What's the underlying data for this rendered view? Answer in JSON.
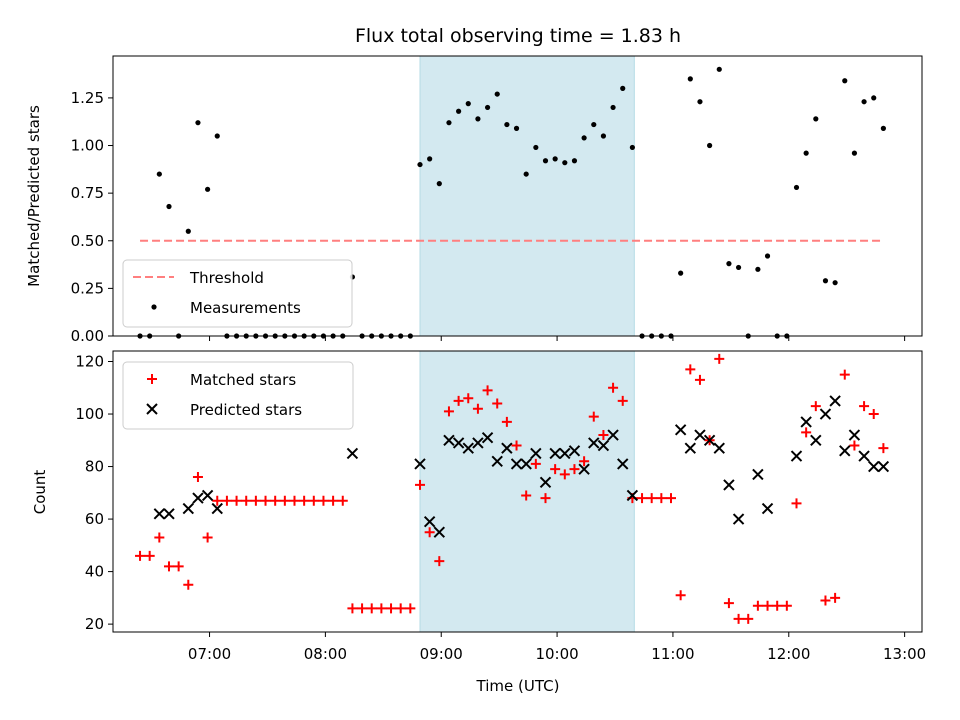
{
  "chart_data": [
    {
      "type": "scatter",
      "title": "Flux total observing time = 1.83 h",
      "xlabel": "",
      "ylabel": "Matched/Predicted stars",
      "xlim": [
        "06:10",
        "13:09"
      ],
      "ylim": [
        0,
        1.47
      ],
      "yticks": [
        "0.00",
        "0.25",
        "0.50",
        "0.75",
        "1.00",
        "1.25"
      ],
      "highlight_span": [
        "08:49",
        "10:40"
      ],
      "highlight_color": "#d3e9f0",
      "threshold": {
        "name": "Threshold",
        "value": 0.5,
        "x_range": [
          "06:24",
          "12:49"
        ],
        "color": "#ff7f7f",
        "style": "dashed"
      },
      "legend": {
        "placement": "lower-left",
        "entries": [
          "Threshold",
          "Measurements"
        ]
      },
      "series": [
        {
          "name": "Measurements",
          "color": "#000000",
          "marker": "dot",
          "points": [
            [
              "06:24",
              0
            ],
            [
              "06:29",
              0
            ],
            [
              "06:34",
              0.85
            ],
            [
              "06:39",
              0.68
            ],
            [
              "06:44",
              0
            ],
            [
              "06:49",
              0.55
            ],
            [
              "06:54",
              1.12
            ],
            [
              "06:59",
              0.77
            ],
            [
              "07:04",
              1.05
            ],
            [
              "07:09",
              0
            ],
            [
              "07:14",
              0
            ],
            [
              "07:19",
              0
            ],
            [
              "07:24",
              0
            ],
            [
              "07:29",
              0
            ],
            [
              "07:34",
              0
            ],
            [
              "07:39",
              0
            ],
            [
              "07:44",
              0
            ],
            [
              "07:49",
              0
            ],
            [
              "07:54",
              0
            ],
            [
              "07:59",
              0
            ],
            [
              "08:04",
              0
            ],
            [
              "08:09",
              0
            ],
            [
              "08:14",
              0.31
            ],
            [
              "08:19",
              0
            ],
            [
              "08:24",
              0
            ],
            [
              "08:29",
              0
            ],
            [
              "08:34",
              0
            ],
            [
              "08:39",
              0
            ],
            [
              "08:44",
              0
            ],
            [
              "08:49",
              0.9
            ],
            [
              "08:54",
              0.93
            ],
            [
              "08:59",
              0.8
            ],
            [
              "09:04",
              1.12
            ],
            [
              "09:09",
              1.18
            ],
            [
              "09:14",
              1.22
            ],
            [
              "09:19",
              1.14
            ],
            [
              "09:24",
              1.2
            ],
            [
              "09:29",
              1.27
            ],
            [
              "09:34",
              1.11
            ],
            [
              "09:39",
              1.09
            ],
            [
              "09:44",
              0.85
            ],
            [
              "09:49",
              0.99
            ],
            [
              "09:54",
              0.92
            ],
            [
              "09:59",
              0.93
            ],
            [
              "10:04",
              0.91
            ],
            [
              "10:09",
              0.92
            ],
            [
              "10:14",
              1.04
            ],
            [
              "10:19",
              1.11
            ],
            [
              "10:24",
              1.05
            ],
            [
              "10:29",
              1.2
            ],
            [
              "10:34",
              1.3
            ],
            [
              "10:39",
              0.99
            ],
            [
              "10:44",
              0
            ],
            [
              "10:49",
              0
            ],
            [
              "10:54",
              0
            ],
            [
              "10:59",
              0
            ],
            [
              "11:04",
              0.33
            ],
            [
              "11:09",
              1.35
            ],
            [
              "11:14",
              1.23
            ],
            [
              "11:19",
              1.0
            ],
            [
              "11:24",
              1.4
            ],
            [
              "11:29",
              0.38
            ],
            [
              "11:34",
              0.36
            ],
            [
              "11:39",
              0
            ],
            [
              "11:44",
              0.35
            ],
            [
              "11:49",
              0.42
            ],
            [
              "11:54",
              0
            ],
            [
              "11:59",
              0
            ],
            [
              "12:04",
              0.78
            ],
            [
              "12:09",
              0.96
            ],
            [
              "12:14",
              1.14
            ],
            [
              "12:19",
              0.29
            ],
            [
              "12:24",
              0.28
            ],
            [
              "12:29",
              1.34
            ],
            [
              "12:34",
              0.96
            ],
            [
              "12:39",
              1.23
            ],
            [
              "12:44",
              1.25
            ],
            [
              "12:49",
              1.09
            ]
          ]
        }
      ],
      "xticks": []
    },
    {
      "type": "scatter",
      "title": "",
      "xlabel": "Time (UTC)",
      "ylabel": "Count",
      "xlim": [
        "06:10",
        "13:09"
      ],
      "ylim": [
        17,
        124
      ],
      "yticks": [
        "20",
        "40",
        "60",
        "80",
        "100",
        "120"
      ],
      "xticks": [
        "07:00",
        "08:00",
        "09:00",
        "10:00",
        "11:00",
        "12:00",
        "13:00"
      ],
      "highlight_span": [
        "08:49",
        "10:40"
      ],
      "highlight_color": "#d3e9f0",
      "legend": {
        "placement": "top-left",
        "entries": [
          "Matched stars",
          "Predicted stars"
        ]
      },
      "series": [
        {
          "name": "Matched stars",
          "color": "#ff0000",
          "marker": "plus",
          "points": [
            [
              "06:24",
              46
            ],
            [
              "06:29",
              46
            ],
            [
              "06:34",
              53
            ],
            [
              "06:39",
              42
            ],
            [
              "06:44",
              42
            ],
            [
              "06:49",
              35
            ],
            [
              "06:54",
              76
            ],
            [
              "06:59",
              53
            ],
            [
              "07:04",
              67
            ],
            [
              "07:09",
              67
            ],
            [
              "07:14",
              67
            ],
            [
              "07:19",
              67
            ],
            [
              "07:24",
              67
            ],
            [
              "07:29",
              67
            ],
            [
              "07:34",
              67
            ],
            [
              "07:39",
              67
            ],
            [
              "07:44",
              67
            ],
            [
              "07:49",
              67
            ],
            [
              "07:54",
              67
            ],
            [
              "07:59",
              67
            ],
            [
              "08:04",
              67
            ],
            [
              "08:09",
              67
            ],
            [
              "08:14",
              26
            ],
            [
              "08:19",
              26
            ],
            [
              "08:24",
              26
            ],
            [
              "08:29",
              26
            ],
            [
              "08:34",
              26
            ],
            [
              "08:39",
              26
            ],
            [
              "08:44",
              26
            ],
            [
              "08:49",
              73
            ],
            [
              "08:54",
              55
            ],
            [
              "08:59",
              44
            ],
            [
              "09:04",
              101
            ],
            [
              "09:09",
              105
            ],
            [
              "09:14",
              106
            ],
            [
              "09:19",
              102
            ],
            [
              "09:24",
              109
            ],
            [
              "09:29",
              104
            ],
            [
              "09:34",
              97
            ],
            [
              "09:39",
              88
            ],
            [
              "09:44",
              69
            ],
            [
              "09:49",
              81
            ],
            [
              "09:54",
              68
            ],
            [
              "09:59",
              79
            ],
            [
              "10:04",
              77
            ],
            [
              "10:09",
              79
            ],
            [
              "10:14",
              82
            ],
            [
              "10:19",
              99
            ],
            [
              "10:24",
              92
            ],
            [
              "10:29",
              110
            ],
            [
              "10:34",
              105
            ],
            [
              "10:39",
              68
            ],
            [
              "10:44",
              68
            ],
            [
              "10:49",
              68
            ],
            [
              "10:54",
              68
            ],
            [
              "10:59",
              68
            ],
            [
              "11:04",
              31
            ],
            [
              "11:09",
              117
            ],
            [
              "11:14",
              113
            ],
            [
              "11:19",
              90
            ],
            [
              "11:24",
              121
            ],
            [
              "11:29",
              28
            ],
            [
              "11:34",
              22
            ],
            [
              "11:39",
              22
            ],
            [
              "11:44",
              27
            ],
            [
              "11:49",
              27
            ],
            [
              "11:54",
              27
            ],
            [
              "11:59",
              27
            ],
            [
              "12:04",
              66
            ],
            [
              "12:09",
              93
            ],
            [
              "12:14",
              103
            ],
            [
              "12:19",
              29
            ],
            [
              "12:24",
              30
            ],
            [
              "12:29",
              115
            ],
            [
              "12:34",
              88
            ],
            [
              "12:39",
              103
            ],
            [
              "12:44",
              100
            ],
            [
              "12:49",
              87
            ]
          ]
        },
        {
          "name": "Predicted stars",
          "color": "#000000",
          "marker": "x",
          "points": [
            [
              "06:34",
              62
            ],
            [
              "06:39",
              62
            ],
            [
              "06:49",
              64
            ],
            [
              "06:54",
              68
            ],
            [
              "06:59",
              69
            ],
            [
              "07:04",
              64
            ],
            [
              "08:14",
              85
            ],
            [
              "08:49",
              81
            ],
            [
              "08:54",
              59
            ],
            [
              "08:59",
              55
            ],
            [
              "09:04",
              90
            ],
            [
              "09:09",
              89
            ],
            [
              "09:14",
              87
            ],
            [
              "09:19",
              89
            ],
            [
              "09:24",
              91
            ],
            [
              "09:29",
              82
            ],
            [
              "09:34",
              87
            ],
            [
              "09:39",
              81
            ],
            [
              "09:44",
              81
            ],
            [
              "09:49",
              85
            ],
            [
              "09:54",
              74
            ],
            [
              "09:59",
              85
            ],
            [
              "10:04",
              85
            ],
            [
              "10:09",
              86
            ],
            [
              "10:14",
              79
            ],
            [
              "10:19",
              89
            ],
            [
              "10:24",
              88
            ],
            [
              "10:29",
              92
            ],
            [
              "10:34",
              81
            ],
            [
              "10:39",
              69
            ],
            [
              "11:04",
              94
            ],
            [
              "11:09",
              87
            ],
            [
              "11:14",
              92
            ],
            [
              "11:19",
              90
            ],
            [
              "11:24",
              87
            ],
            [
              "11:29",
              73
            ],
            [
              "11:34",
              60
            ],
            [
              "11:44",
              77
            ],
            [
              "11:49",
              64
            ],
            [
              "12:04",
              84
            ],
            [
              "12:09",
              97
            ],
            [
              "12:14",
              90
            ],
            [
              "12:19",
              100
            ],
            [
              "12:24",
              105
            ],
            [
              "12:29",
              86
            ],
            [
              "12:34",
              92
            ],
            [
              "12:39",
              84
            ],
            [
              "12:44",
              80
            ],
            [
              "12:49",
              80
            ]
          ]
        }
      ]
    }
  ]
}
